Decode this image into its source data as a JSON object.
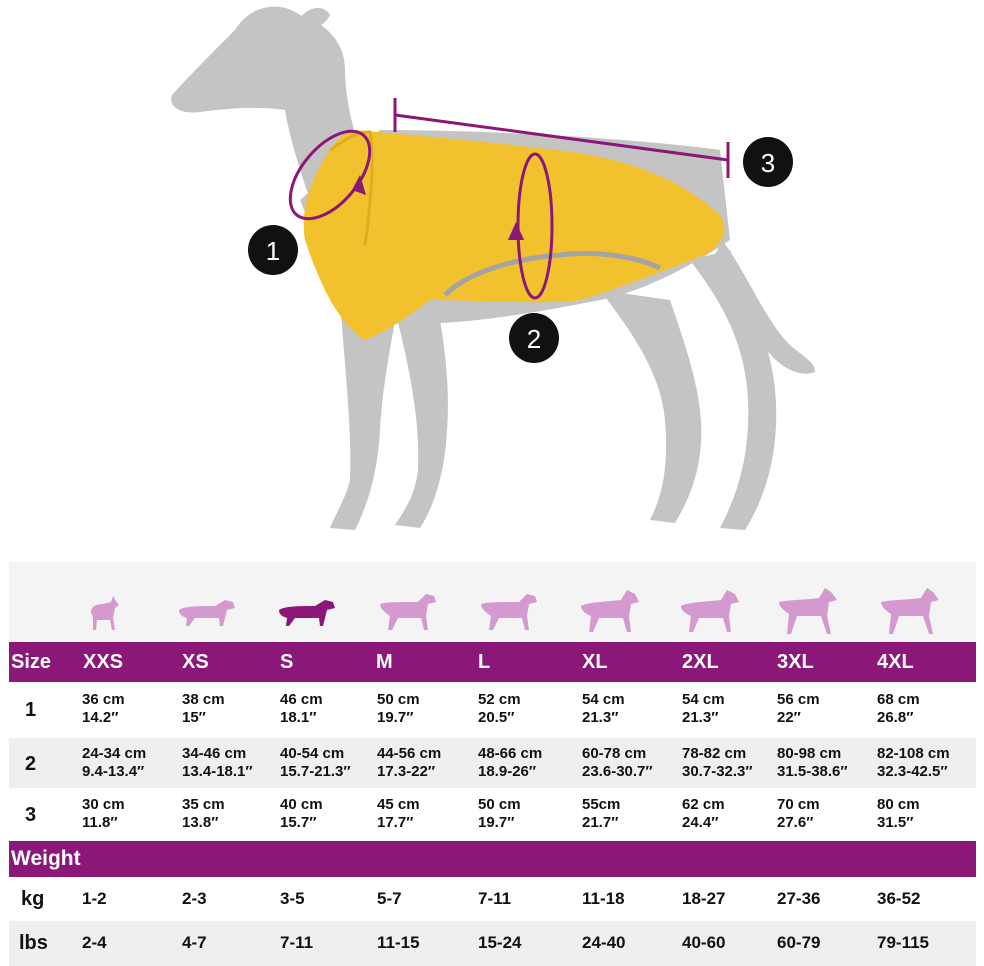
{
  "colors": {
    "header_bg": "#8b1779",
    "dog_icon": "#d49ad0",
    "dog_icon_selected": "#8b1779",
    "coat": "#f2c12e",
    "measure_line": "#8b1779",
    "dog_silhouette": "#c4c4c4"
  },
  "illustration": {
    "markers": [
      "1",
      "2",
      "3"
    ],
    "subject": "greyhound wearing yellow coat"
  },
  "table": {
    "header_label": "Size",
    "sizes": [
      "XXS",
      "XS",
      "S",
      "M",
      "L",
      "XL",
      "2XL",
      "3XL",
      "4XL"
    ],
    "selected_size": "S",
    "rows": [
      {
        "label": "1",
        "values": [
          {
            "cm": "36 cm",
            "in": "14.2″"
          },
          {
            "cm": "38 cm",
            "in": "15″"
          },
          {
            "cm": "46 cm",
            "in": "18.1″"
          },
          {
            "cm": "50 cm",
            "in": "19.7″"
          },
          {
            "cm": "52 cm",
            "in": "20.5″"
          },
          {
            "cm": "54 cm",
            "in": "21.3″"
          },
          {
            "cm": "54 cm",
            "in": "21.3″"
          },
          {
            "cm": "56 cm",
            "in": "22″"
          },
          {
            "cm": "68 cm",
            "in": "26.8″"
          }
        ]
      },
      {
        "label": "2",
        "values": [
          {
            "cm": "24-34 cm",
            "in": "9.4-13.4″"
          },
          {
            "cm": "34-46 cm",
            "in": "13.4-18.1″"
          },
          {
            "cm": "40-54 cm",
            "in": "15.7-21.3″"
          },
          {
            "cm": "44-56 cm",
            "in": "17.3-22″"
          },
          {
            "cm": "48-66 cm",
            "in": "18.9-26″"
          },
          {
            "cm": "60-78 cm",
            "in": "23.6-30.7″"
          },
          {
            "cm": "78-82 cm",
            "in": "30.7-32.3″"
          },
          {
            "cm": "80-98 cm",
            "in": "31.5-38.6″"
          },
          {
            "cm": "82-108 cm",
            "in": "32.3-42.5″"
          }
        ]
      },
      {
        "label": "3",
        "values": [
          {
            "cm": "30 cm",
            "in": "11.8″"
          },
          {
            "cm": "35 cm",
            "in": "13.8″"
          },
          {
            "cm": "40 cm",
            "in": "15.7″"
          },
          {
            "cm": "45 cm",
            "in": "17.7″"
          },
          {
            "cm": "50 cm",
            "in": "19.7″"
          },
          {
            "cm": "55cm",
            "in": "21.7″"
          },
          {
            "cm": "62 cm",
            "in": "24.4″"
          },
          {
            "cm": "70 cm",
            "in": "27.6″"
          },
          {
            "cm": "80 cm",
            "in": "31.5″"
          }
        ]
      }
    ],
    "weight_label": "Weight",
    "weight_rows": [
      {
        "label": "kg",
        "values": [
          "1-2",
          "2-3",
          "3-5",
          "5-7",
          "7-11",
          "11-18",
          "18-27",
          "27-36",
          "36-52"
        ]
      },
      {
        "label": "lbs",
        "values": [
          "2-4",
          "4-7",
          "7-11",
          "11-15",
          "15-24",
          "24-40",
          "40-60",
          "60-79",
          "79-115"
        ]
      }
    ]
  }
}
